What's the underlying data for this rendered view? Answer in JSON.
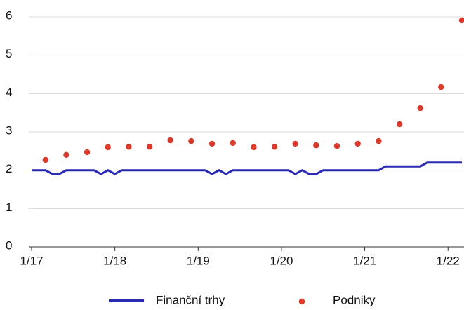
{
  "chart_data": {
    "type": "line",
    "xlim": [
      "2017-01",
      "2022-03"
    ],
    "xticks": [
      {
        "value": "2017-01",
        "label": "1/17"
      },
      {
        "value": "2018-01",
        "label": "1/18"
      },
      {
        "value": "2019-01",
        "label": "1/19"
      },
      {
        "value": "2020-01",
        "label": "1/20"
      },
      {
        "value": "2021-01",
        "label": "1/21"
      },
      {
        "value": "2022-01",
        "label": "1/22"
      }
    ],
    "ylim": [
      0,
      6
    ],
    "yticks": [
      0,
      1,
      2,
      3,
      4,
      5,
      6
    ],
    "grid": true,
    "series": [
      {
        "name": "Finanční trhy",
        "color": "#2a2ab4",
        "type": "line",
        "x": [
          "2017-01",
          "2017-02",
          "2017-03",
          "2017-04",
          "2017-05",
          "2017-06",
          "2017-07",
          "2017-08",
          "2017-09",
          "2017-10",
          "2017-11",
          "2017-12",
          "2018-01",
          "2018-02",
          "2018-03",
          "2018-04",
          "2018-05",
          "2018-06",
          "2018-07",
          "2018-08",
          "2018-09",
          "2018-10",
          "2018-11",
          "2018-12",
          "2019-01",
          "2019-02",
          "2019-03",
          "2019-04",
          "2019-05",
          "2019-06",
          "2019-07",
          "2019-08",
          "2019-09",
          "2019-10",
          "2019-11",
          "2019-12",
          "2020-01",
          "2020-02",
          "2020-03",
          "2020-04",
          "2020-05",
          "2020-06",
          "2020-07",
          "2020-08",
          "2020-09",
          "2020-10",
          "2020-11",
          "2020-12",
          "2021-01",
          "2021-02",
          "2021-03",
          "2021-04",
          "2021-05",
          "2021-06",
          "2021-07",
          "2021-08",
          "2021-09",
          "2021-10",
          "2021-11",
          "2021-12",
          "2022-01",
          "2022-02",
          "2022-03"
        ],
        "values": [
          2.0,
          2.0,
          2.0,
          1.9,
          1.9,
          2.0,
          2.0,
          2.0,
          2.0,
          2.0,
          1.9,
          2.0,
          1.9,
          2.0,
          2.0,
          2.0,
          2.0,
          2.0,
          2.0,
          2.0,
          2.0,
          2.0,
          2.0,
          2.0,
          2.0,
          2.0,
          1.9,
          2.0,
          1.9,
          2.0,
          2.0,
          2.0,
          2.0,
          2.0,
          2.0,
          2.0,
          2.0,
          2.0,
          1.9,
          2.0,
          1.9,
          1.9,
          2.0,
          2.0,
          2.0,
          2.0,
          2.0,
          2.0,
          2.0,
          2.0,
          2.0,
          2.1,
          2.1,
          2.1,
          2.1,
          2.1,
          2.1,
          2.2,
          2.2,
          2.2,
          2.2,
          2.2,
          2.2
        ]
      },
      {
        "name": "Podniky",
        "color": "#d93a2b",
        "type": "scatter",
        "x": [
          "2017-03",
          "2017-06",
          "2017-09",
          "2017-12",
          "2018-03",
          "2018-06",
          "2018-09",
          "2018-12",
          "2019-03",
          "2019-06",
          "2019-09",
          "2019-12",
          "2020-03",
          "2020-06",
          "2020-09",
          "2020-12",
          "2021-03",
          "2021-06",
          "2021-09",
          "2021-12",
          "2022-03"
        ],
        "values": [
          2.27,
          2.4,
          2.47,
          2.6,
          2.61,
          2.61,
          2.78,
          2.76,
          2.69,
          2.71,
          2.6,
          2.61,
          2.69,
          2.65,
          2.63,
          2.69,
          2.76,
          3.2,
          3.62,
          4.17,
          5.91
        ]
      }
    ]
  }
}
